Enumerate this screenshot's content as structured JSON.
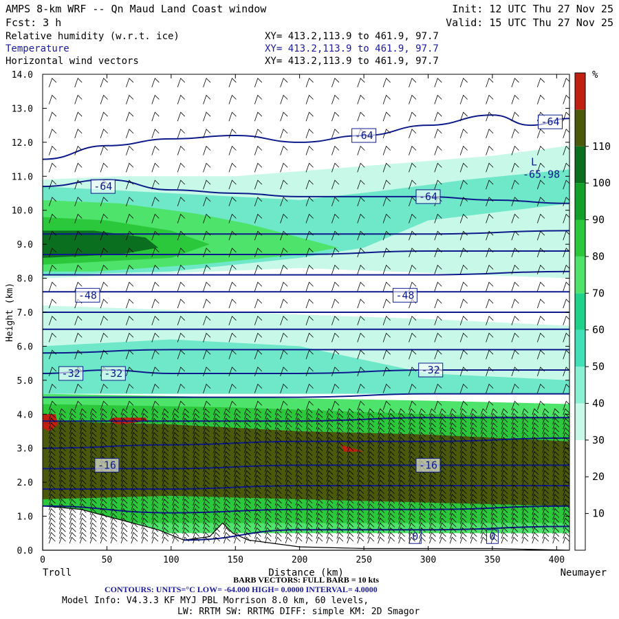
{
  "header": {
    "title": "AMPS 8-km WRF -- Qn Maud Land Coast window",
    "fcst": "Fcst:     3 h",
    "init": "Init: 12 UTC Thu 27 Nov 25",
    "valid": "Valid: 15 UTC Thu 27 Nov 25",
    "fields": [
      {
        "name": "Relative humidity (w.r.t. ice)",
        "xy": "XY= 413.2,113.9 to 461.9, 97.7",
        "color": "#000000"
      },
      {
        "name": "Temperature",
        "xy": "XY= 413.2,113.9 to 461.9, 97.7",
        "color": "#1a1a9c"
      },
      {
        "name": "Horizontal wind vectors",
        "xy": "XY= 413.2,113.9 to 461.9, 97.7",
        "color": "#000000"
      }
    ]
  },
  "footer": {
    "barb": "BARB VECTORS:  FULL BARB = 10 kts",
    "contours": "CONTOURS:  UNITS=°C  LOW= -64.000      HIGH=  0.0000      INTERVAL=   4.0000",
    "model": "Model Info: V4.3.3   KF     MYJ PBL  Morrison        8.0 km,  60 levels,",
    "model2": "LW: RRTM SW: RRTMG   DIFF: simple KM: 2D Smagor"
  },
  "chart_data": {
    "type": "heatmap",
    "title": "Relative humidity (w.r.t. ice)",
    "xlabel": "Distance (km)",
    "ylabel": "Height (km)",
    "xlim": [
      0,
      410
    ],
    "ylim": [
      0,
      14
    ],
    "x_ticks": [
      0,
      50,
      100,
      150,
      200,
      250,
      300,
      350,
      400
    ],
    "y_ticks": [
      "0.0",
      "1.0",
      "2.0",
      "3.0",
      "4.0",
      "5.0",
      "6.0",
      "7.0",
      "8.0",
      "9.0",
      "10.0",
      "11.0",
      "12.0",
      "13.0",
      "14.0"
    ],
    "x_end_labels": {
      "left": "Troll",
      "right": "Neumayer"
    },
    "colorbar": {
      "unit": "%",
      "ticks": [
        10,
        20,
        30,
        40,
        50,
        60,
        70,
        80,
        90,
        100,
        110
      ],
      "colors": [
        "#ffffff",
        "#ffffff",
        "#ffffff",
        "#c8f8e8",
        "#8cf0d4",
        "#40e0b8",
        "#1ed28a",
        "#4ee36a",
        "#2ac83a",
        "#12a02a",
        "#0a7020",
        "#4a5a0a",
        "#c02010"
      ]
    },
    "rh_regions": [
      {
        "name": "upper-cloud",
        "rh": 40,
        "color": "#c8f8e8",
        "pts": [
          [
            0,
            10.9
          ],
          [
            60,
            11.0
          ],
          [
            150,
            11.0
          ],
          [
            250,
            11.3
          ],
          [
            350,
            11.6
          ],
          [
            410,
            11.9
          ],
          [
            410,
            8.0
          ],
          [
            200,
            8.3
          ],
          [
            0,
            8.0
          ]
        ]
      },
      {
        "name": "upper-cloud-core",
        "rh": 50,
        "color": "#6ee8c8",
        "pts": [
          [
            0,
            10.7
          ],
          [
            100,
            10.5
          ],
          [
            200,
            10.3
          ],
          [
            270,
            10.6
          ],
          [
            330,
            10.9
          ],
          [
            410,
            11.2
          ],
          [
            410,
            10.2
          ],
          [
            300,
            9.7
          ],
          [
            250,
            8.9
          ],
          [
            200,
            8.6
          ],
          [
            100,
            8.2
          ],
          [
            0,
            8.1
          ]
        ]
      },
      {
        "name": "upper-moist-1",
        "rh": 70,
        "color": "#4ee36a",
        "pts": [
          [
            0,
            10.3
          ],
          [
            60,
            10.2
          ],
          [
            120,
            9.9
          ],
          [
            160,
            9.6
          ],
          [
            200,
            9.2
          ],
          [
            230,
            8.9
          ],
          [
            200,
            8.7
          ],
          [
            120,
            8.4
          ],
          [
            40,
            8.2
          ],
          [
            0,
            8.2
          ]
        ]
      },
      {
        "name": "upper-moist-2",
        "rh": 80,
        "color": "#2ac83a",
        "pts": [
          [
            0,
            9.8
          ],
          [
            50,
            9.7
          ],
          [
            100,
            9.4
          ],
          [
            130,
            9.0
          ],
          [
            100,
            8.6
          ],
          [
            50,
            8.5
          ],
          [
            0,
            8.4
          ]
        ]
      },
      {
        "name": "upper-moist-3",
        "rh": 90,
        "color": "#0a7020",
        "pts": [
          [
            0,
            9.4
          ],
          [
            40,
            9.4
          ],
          [
            80,
            9.2
          ],
          [
            90,
            8.9
          ],
          [
            60,
            8.7
          ],
          [
            0,
            8.6
          ]
        ]
      },
      {
        "name": "mid-dry-band",
        "rh": 40,
        "color": "#c8f8e8",
        "pts": [
          [
            0,
            7.2
          ],
          [
            150,
            7.0
          ],
          [
            300,
            6.8
          ],
          [
            410,
            6.6
          ],
          [
            410,
            4.7
          ],
          [
            200,
            4.8
          ],
          [
            0,
            4.6
          ]
        ]
      },
      {
        "name": "mid-moist",
        "rh": 50,
        "color": "#6ee8c8",
        "pts": [
          [
            0,
            6.0
          ],
          [
            100,
            6.2
          ],
          [
            200,
            6.0
          ],
          [
            300,
            5.2
          ],
          [
            410,
            5.0
          ],
          [
            410,
            4.6
          ],
          [
            0,
            4.6
          ]
        ]
      },
      {
        "name": "low-cloud",
        "rh": 70,
        "color": "#4ee36a",
        "pts": [
          [
            0,
            4.6
          ],
          [
            150,
            4.5
          ],
          [
            300,
            4.4
          ],
          [
            410,
            4.3
          ],
          [
            410,
            0.5
          ],
          [
            0,
            0.5
          ]
        ]
      },
      {
        "name": "low-cloud-2",
        "rh": 80,
        "color": "#2ac83a",
        "pts": [
          [
            0,
            4.3
          ],
          [
            150,
            4.2
          ],
          [
            300,
            4.0
          ],
          [
            410,
            3.9
          ],
          [
            410,
            0.8
          ],
          [
            0,
            0.8
          ]
        ]
      },
      {
        "name": "low-cloud-3",
        "rh": 100,
        "color": "#4a5a0a",
        "pts": [
          [
            0,
            3.8
          ],
          [
            100,
            3.7
          ],
          [
            200,
            3.5
          ],
          [
            300,
            3.4
          ],
          [
            410,
            3.2
          ],
          [
            410,
            1.3
          ],
          [
            300,
            1.4
          ],
          [
            200,
            1.5
          ],
          [
            100,
            1.6
          ],
          [
            0,
            1.5
          ]
        ]
      },
      {
        "name": "supersat-1",
        "rh": 110,
        "color": "#c02010",
        "pts": [
          [
            0,
            4.0
          ],
          [
            10,
            4.0
          ],
          [
            12,
            3.7
          ],
          [
            5,
            3.5
          ],
          [
            0,
            3.6
          ]
        ]
      },
      {
        "name": "supersat-2",
        "rh": 110,
        "color": "#c02010",
        "pts": [
          [
            55,
            3.9
          ],
          [
            80,
            3.9
          ],
          [
            82,
            3.8
          ],
          [
            60,
            3.7
          ],
          [
            50,
            3.8
          ]
        ]
      },
      {
        "name": "supersat-3",
        "rh": 110,
        "color": "#c02010",
        "pts": [
          [
            232,
            3.1
          ],
          [
            250,
            2.9
          ],
          [
            235,
            2.9
          ]
        ]
      }
    ],
    "temperature_contours": [
      {
        "value": -64,
        "pts": [
          [
            0,
            11.5
          ],
          [
            50,
            11.9
          ],
          [
            100,
            12.1
          ],
          [
            150,
            12.2
          ],
          [
            200,
            12.0
          ],
          [
            250,
            12.2
          ],
          [
            300,
            12.5
          ],
          [
            350,
            12.8
          ],
          [
            380,
            12.5
          ],
          [
            410,
            12.7
          ]
        ]
      },
      {
        "value": -64,
        "pts": [
          [
            0,
            10.7
          ],
          [
            50,
            10.9
          ],
          [
            100,
            10.6
          ],
          [
            150,
            10.5
          ],
          [
            200,
            10.4
          ],
          [
            250,
            10.4
          ],
          [
            300,
            10.4
          ],
          [
            350,
            10.3
          ],
          [
            410,
            10.2
          ]
        ]
      },
      {
        "value": -60,
        "pts": [
          [
            0,
            9.3
          ],
          [
            100,
            9.3
          ],
          [
            200,
            9.3
          ],
          [
            300,
            9.3
          ],
          [
            410,
            9.4
          ]
        ]
      },
      {
        "value": -56,
        "pts": [
          [
            0,
            8.7
          ],
          [
            100,
            8.7
          ],
          [
            200,
            8.7
          ],
          [
            300,
            8.8
          ],
          [
            410,
            8.8
          ]
        ]
      },
      {
        "value": -52,
        "pts": [
          [
            0,
            8.1
          ],
          [
            100,
            8.1
          ],
          [
            200,
            8.1
          ],
          [
            300,
            8.1
          ],
          [
            410,
            8.2
          ]
        ]
      },
      {
        "value": -48,
        "pts": [
          [
            0,
            7.6
          ],
          [
            100,
            7.6
          ],
          [
            200,
            7.6
          ],
          [
            300,
            7.6
          ],
          [
            410,
            7.6
          ]
        ]
      },
      {
        "value": -44,
        "pts": [
          [
            0,
            7.0
          ],
          [
            100,
            7.0
          ],
          [
            200,
            7.0
          ],
          [
            300,
            7.0
          ],
          [
            410,
            7.0
          ]
        ]
      },
      {
        "value": -40,
        "pts": [
          [
            0,
            6.5
          ],
          [
            100,
            6.5
          ],
          [
            200,
            6.5
          ],
          [
            300,
            6.5
          ],
          [
            410,
            6.5
          ]
        ]
      },
      {
        "value": -36,
        "pts": [
          [
            0,
            5.8
          ],
          [
            100,
            5.9
          ],
          [
            200,
            5.9
          ],
          [
            300,
            5.9
          ],
          [
            410,
            5.9
          ]
        ]
      },
      {
        "value": -32,
        "pts": [
          [
            0,
            5.2
          ],
          [
            50,
            5.3
          ],
          [
            100,
            5.2
          ],
          [
            200,
            5.2
          ],
          [
            300,
            5.3
          ],
          [
            410,
            5.3
          ]
        ]
      },
      {
        "value": -28,
        "pts": [
          [
            0,
            4.5
          ],
          [
            100,
            4.5
          ],
          [
            200,
            4.5
          ],
          [
            300,
            4.6
          ],
          [
            410,
            4.6
          ]
        ]
      },
      {
        "value": -24,
        "pts": [
          [
            0,
            3.8
          ],
          [
            100,
            3.8
          ],
          [
            200,
            3.8
          ],
          [
            300,
            3.9
          ],
          [
            410,
            3.9
          ]
        ]
      },
      {
        "value": -20,
        "pts": [
          [
            0,
            3.0
          ],
          [
            100,
            3.1
          ],
          [
            200,
            3.2
          ],
          [
            300,
            3.2
          ],
          [
            410,
            3.3
          ]
        ]
      },
      {
        "value": -16,
        "pts": [
          [
            0,
            2.4
          ],
          [
            100,
            2.4
          ],
          [
            200,
            2.5
          ],
          [
            300,
            2.5
          ],
          [
            410,
            2.5
          ]
        ]
      },
      {
        "value": -12,
        "pts": [
          [
            0,
            1.8
          ],
          [
            100,
            1.8
          ],
          [
            200,
            1.9
          ],
          [
            300,
            1.9
          ],
          [
            410,
            1.9
          ]
        ]
      },
      {
        "value": -8,
        "pts": [
          [
            0,
            1.3
          ],
          [
            100,
            1.1
          ],
          [
            200,
            1.2
          ],
          [
            300,
            1.2
          ],
          [
            410,
            1.3
          ]
        ]
      },
      {
        "value": -4,
        "pts": [
          [
            110,
            0.3
          ],
          [
            200,
            0.6
          ],
          [
            300,
            0.6
          ],
          [
            410,
            0.7
          ]
        ]
      }
    ],
    "contour_labels": [
      {
        "text": "-64",
        "x": 47,
        "y": 10.7
      },
      {
        "text": "-64",
        "x": 250,
        "y": 12.2
      },
      {
        "text": "-64",
        "x": 395,
        "y": 12.6
      },
      {
        "text": "-64",
        "x": 300,
        "y": 10.4
      },
      {
        "text": "-48",
        "x": 35,
        "y": 7.5
      },
      {
        "text": "-48",
        "x": 282,
        "y": 7.5
      },
      {
        "text": "-32",
        "x": 22,
        "y": 5.2
      },
      {
        "text": "-32",
        "x": 55,
        "y": 5.2
      },
      {
        "text": "-32",
        "x": 302,
        "y": 5.3
      },
      {
        "text": "-16",
        "x": 50,
        "y": 2.5
      },
      {
        "text": "-16",
        "x": 300,
        "y": 2.5
      },
      {
        "text": "0",
        "x": 290,
        "y": 0.4
      },
      {
        "text": "0",
        "x": 350,
        "y": 0.4
      }
    ],
    "low_marker": {
      "symbol": "L",
      "value": "-65.98",
      "x": 380,
      "y": 11.2
    },
    "terrain": [
      [
        0,
        1.3
      ],
      [
        30,
        1.2
      ],
      [
        60,
        0.9
      ],
      [
        90,
        0.6
      ],
      [
        110,
        0.3
      ],
      [
        130,
        0.4
      ],
      [
        140,
        0.8
      ],
      [
        148,
        0.5
      ],
      [
        160,
        0.3
      ],
      [
        200,
        0.1
      ],
      [
        250,
        0.05
      ],
      [
        300,
        0.05
      ],
      [
        350,
        0.05
      ],
      [
        410,
        0
      ]
    ]
  }
}
